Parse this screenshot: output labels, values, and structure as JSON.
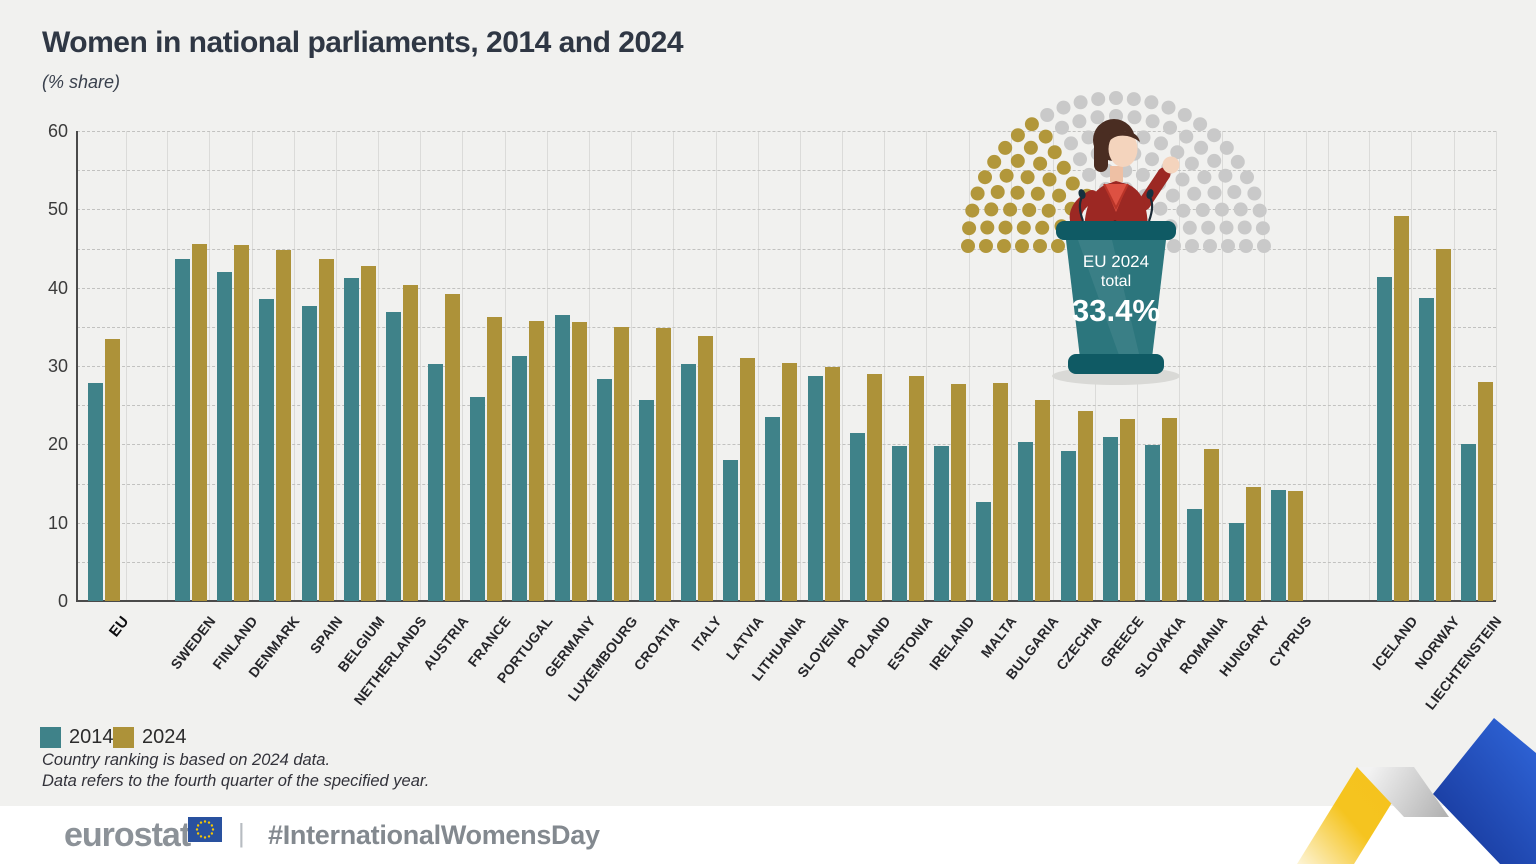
{
  "header": {
    "title": "Women in national parliaments, 2014 and 2024",
    "subtitle": "(% share)"
  },
  "chart_data": {
    "type": "bar",
    "title": "Women in national parliaments, 2014 and 2024",
    "subtitle": "(% share)",
    "ylabel": "% share",
    "ylim": [
      0,
      60
    ],
    "yticks": [
      0,
      10,
      20,
      30,
      40,
      50,
      60
    ],
    "gridline_step": 5,
    "grid": true,
    "legend_position": "bottom-left",
    "series_names": [
      "2014",
      "2024"
    ],
    "series_colors": {
      "2014": "#3f8289",
      "2024": "#ad9239"
    },
    "groups": [
      {
        "label": "EU",
        "section": "eu",
        "bold": true,
        "v2014": 27.8,
        "v2024": 33.4
      },
      {
        "label": "SWEDEN",
        "section": "members",
        "v2014": 43.6,
        "v2024": 45.6
      },
      {
        "label": "FINLAND",
        "section": "members",
        "v2014": 42.0,
        "v2024": 45.5
      },
      {
        "label": "DENMARK",
        "section": "members",
        "v2014": 38.6,
        "v2024": 44.8
      },
      {
        "label": "SPAIN",
        "section": "members",
        "v2014": 37.7,
        "v2024": 43.7
      },
      {
        "label": "BELGIUM",
        "section": "members",
        "v2014": 41.2,
        "v2024": 42.8
      },
      {
        "label": "NETHERLANDS",
        "section": "members",
        "v2014": 36.9,
        "v2024": 40.4
      },
      {
        "label": "AUSTRIA",
        "section": "members",
        "v2014": 30.3,
        "v2024": 39.2
      },
      {
        "label": "FRANCE",
        "section": "members",
        "v2014": 26.1,
        "v2024": 36.2
      },
      {
        "label": "PORTUGAL",
        "section": "members",
        "v2014": 31.3,
        "v2024": 35.8
      },
      {
        "label": "GERMANY",
        "section": "members",
        "v2014": 36.5,
        "v2024": 35.6
      },
      {
        "label": "LUXEMBOURG",
        "section": "members",
        "v2014": 28.3,
        "v2024": 35.0
      },
      {
        "label": "CROATIA",
        "section": "members",
        "v2014": 25.7,
        "v2024": 34.9
      },
      {
        "label": "ITALY",
        "section": "members",
        "v2014": 30.2,
        "v2024": 33.8
      },
      {
        "label": "LATVIA",
        "section": "members",
        "v2014": 18.0,
        "v2024": 31.0
      },
      {
        "label": "LITHUANIA",
        "section": "members",
        "v2014": 23.5,
        "v2024": 30.4
      },
      {
        "label": "SLOVENIA",
        "section": "members",
        "v2014": 28.7,
        "v2024": 29.9
      },
      {
        "label": "POLAND",
        "section": "members",
        "v2014": 21.4,
        "v2024": 29.0
      },
      {
        "label": "ESTONIA",
        "section": "members",
        "v2014": 19.8,
        "v2024": 28.7
      },
      {
        "label": "IRELAND",
        "section": "members",
        "v2014": 19.8,
        "v2024": 27.7
      },
      {
        "label": "MALTA",
        "section": "members",
        "v2014": 12.7,
        "v2024": 27.8
      },
      {
        "label": "BULGARIA",
        "section": "members",
        "v2014": 20.3,
        "v2024": 25.7
      },
      {
        "label": "CZECHIA",
        "section": "members",
        "v2014": 19.1,
        "v2024": 24.3
      },
      {
        "label": "GREECE",
        "section": "members",
        "v2014": 20.9,
        "v2024": 23.2
      },
      {
        "label": "SLOVAKIA",
        "section": "members",
        "v2014": 19.9,
        "v2024": 23.3
      },
      {
        "label": "ROMANIA",
        "section": "members",
        "v2014": 11.8,
        "v2024": 19.4
      },
      {
        "label": "HUNGARY",
        "section": "members",
        "v2014": 9.9,
        "v2024": 14.5
      },
      {
        "label": "CYPRUS",
        "section": "members",
        "v2014": 14.2,
        "v2024": 14.1
      },
      {
        "label": "ICELAND",
        "section": "efta",
        "v2014": 41.3,
        "v2024": 49.2
      },
      {
        "label": "NORWAY",
        "section": "efta",
        "v2014": 38.7,
        "v2024": 45.0
      },
      {
        "label": "LIECHTENSTEIN",
        "section": "efta",
        "v2014": 20.0,
        "v2024": 28.0
      }
    ]
  },
  "legend": [
    {
      "label": "2014",
      "color": "#3f8289"
    },
    {
      "label": "2024",
      "color": "#ad9239"
    }
  ],
  "annotation": {
    "line1": "EU 2024",
    "line2": "total",
    "value": "33.4%"
  },
  "parliament": {
    "women_share": 0.334,
    "women_seat_color": "#b2973a",
    "other_seat_color": "#c9c9c9"
  },
  "footnotes": [
    "Country ranking is based on 2024 data.",
    "Data refers to the fourth quarter of the specified year."
  ],
  "footer": {
    "logo_text": "eurostat",
    "separator": "|",
    "hashtag": "#InternationalWomensDay"
  },
  "colors": {
    "background": "#f1f1ef",
    "bar_2014": "#3f8289",
    "bar_2024": "#ad9239",
    "podium": "#2c767d",
    "podium_dark": "#0f5a64",
    "ribbon_yellow": "#f5c21e",
    "ribbon_blue": "#2553c8"
  }
}
